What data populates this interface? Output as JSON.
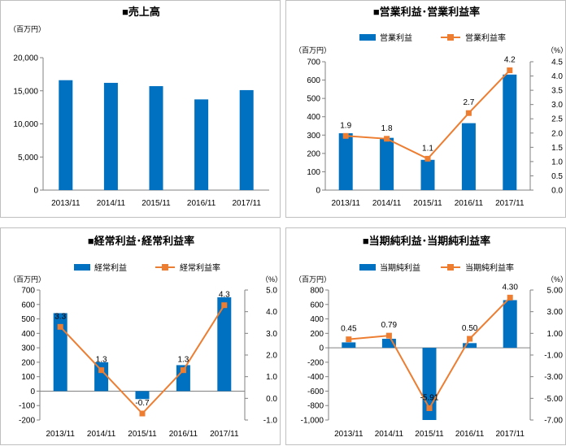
{
  "colors": {
    "bar": "#0070c0",
    "line": "#ed7d31",
    "grid": "#d9d9d9",
    "axis": "#808080"
  },
  "charts": [
    {
      "id": "sales",
      "title": "■売上高",
      "unit_left": "（百万円）",
      "unit_right": "",
      "legend": [],
      "chart_data": {
        "type": "bar",
        "categories": [
          "2013/11",
          "2014/11",
          "2015/11",
          "2016/11",
          "2017/11"
        ],
        "series": [
          {
            "values": [
              16600,
              16200,
              15700,
              13700,
              15100
            ]
          }
        ],
        "ylim": [
          0,
          20000
        ],
        "yticks": [
          0,
          5000,
          10000,
          15000,
          20000
        ],
        "ytick_labels": [
          "0",
          "5,000",
          "10,000",
          "15,000",
          "20,000"
        ],
        "grid": false
      }
    },
    {
      "id": "operating",
      "title": "■営業利益･営業利益率",
      "unit_left": "（百万円）",
      "unit_right": "（%）",
      "legend": [
        "営業利益",
        "営業利益率"
      ],
      "chart_data": {
        "type": "bar+line",
        "categories": [
          "2013/11",
          "2014/11",
          "2015/11",
          "2016/11",
          "2017/11"
        ],
        "series": [
          {
            "name": "営業利益",
            "values": [
              310,
              285,
              165,
              365,
              630
            ]
          },
          {
            "name": "営業利益率",
            "values": [
              1.9,
              1.8,
              1.1,
              2.7,
              4.2
            ],
            "axis": "right",
            "data_labels": [
              "1.9",
              "1.8",
              "1.1",
              "2.7",
              "4.2"
            ]
          }
        ],
        "ylim": [
          0,
          700
        ],
        "yticks": [
          0,
          100,
          200,
          300,
          400,
          500,
          600,
          700
        ],
        "ytick_labels": [
          "0",
          "100",
          "200",
          "300",
          "400",
          "500",
          "600",
          "700"
        ],
        "y2lim": [
          0,
          4.5
        ],
        "y2ticks": [
          0,
          0.5,
          1,
          1.5,
          2,
          2.5,
          3,
          3.5,
          4,
          4.5
        ],
        "y2tick_labels": [
          "0.0",
          "0.5",
          "1.0",
          "1.5",
          "2.0",
          "2.5",
          "3.0",
          "3.5",
          "4.0",
          "4.5"
        ],
        "grid": false
      }
    },
    {
      "id": "ordinary",
      "title": "■経常利益･経常利益率",
      "unit_left": "（百万円）",
      "unit_right": "（%）",
      "legend": [
        "経常利益",
        "経常利益率"
      ],
      "chart_data": {
        "type": "bar+line",
        "categories": [
          "2013/11",
          "2014/11",
          "2015/11",
          "2016/11",
          "2017/11"
        ],
        "series": [
          {
            "name": "経常利益",
            "values": [
              540,
              200,
              -55,
              180,
              650
            ]
          },
          {
            "name": "経常利益率",
            "values": [
              3.3,
              1.3,
              -0.7,
              1.3,
              4.3
            ],
            "axis": "right",
            "data_labels": [
              "3.3",
              "1.3",
              "-0.7",
              "1.3",
              "4.3"
            ]
          }
        ],
        "ylim": [
          -200,
          700
        ],
        "yticks": [
          -200,
          -100,
          0,
          100,
          200,
          300,
          400,
          500,
          600,
          700
        ],
        "ytick_labels": [
          "-200",
          "-100",
          "0",
          "100",
          "200",
          "300",
          "400",
          "500",
          "600",
          "700"
        ],
        "y2lim": [
          -1,
          5
        ],
        "y2ticks": [
          -1,
          0,
          1,
          2,
          3,
          4,
          5
        ],
        "y2tick_labels": [
          "-1.0",
          "0.0",
          "1.0",
          "2.0",
          "3.0",
          "4.0",
          "5.0"
        ],
        "grid": false
      }
    },
    {
      "id": "net",
      "title": "■当期純利益･当期純利益率",
      "unit_left": "（百万円）",
      "unit_right": "（%）",
      "legend": [
        "当期純利益",
        "当期純利益率"
      ],
      "chart_data": {
        "type": "bar+line",
        "categories": [
          "2013/11",
          "2014/11",
          "2015/11",
          "2016/11",
          "2017/11"
        ],
        "series": [
          {
            "name": "当期純利益",
            "values": [
              75,
              125,
              -1000,
              65,
              660
            ]
          },
          {
            "name": "当期純利益率",
            "values": [
              0.45,
              0.79,
              -5.91,
              0.5,
              4.3
            ],
            "axis": "right",
            "data_labels": [
              "0.45",
              "0.79",
              "-5.91",
              "0.50",
              "4.30"
            ]
          }
        ],
        "ylim": [
          -1000,
          800
        ],
        "yticks": [
          -1000,
          -800,
          -600,
          -400,
          -200,
          0,
          200,
          400,
          600,
          800
        ],
        "ytick_labels": [
          "-1,000",
          "-800",
          "-600",
          "-400",
          "-200",
          "0",
          "200",
          "400",
          "600",
          "800"
        ],
        "y2lim": [
          -7,
          5
        ],
        "y2ticks": [
          -7,
          -5,
          -3,
          -1,
          1,
          3,
          5
        ],
        "y2tick_labels": [
          "-7.00",
          "-5.00",
          "-3.00",
          "-1.00",
          "1.00",
          "3.00",
          "5.00"
        ],
        "grid": false
      }
    }
  ]
}
